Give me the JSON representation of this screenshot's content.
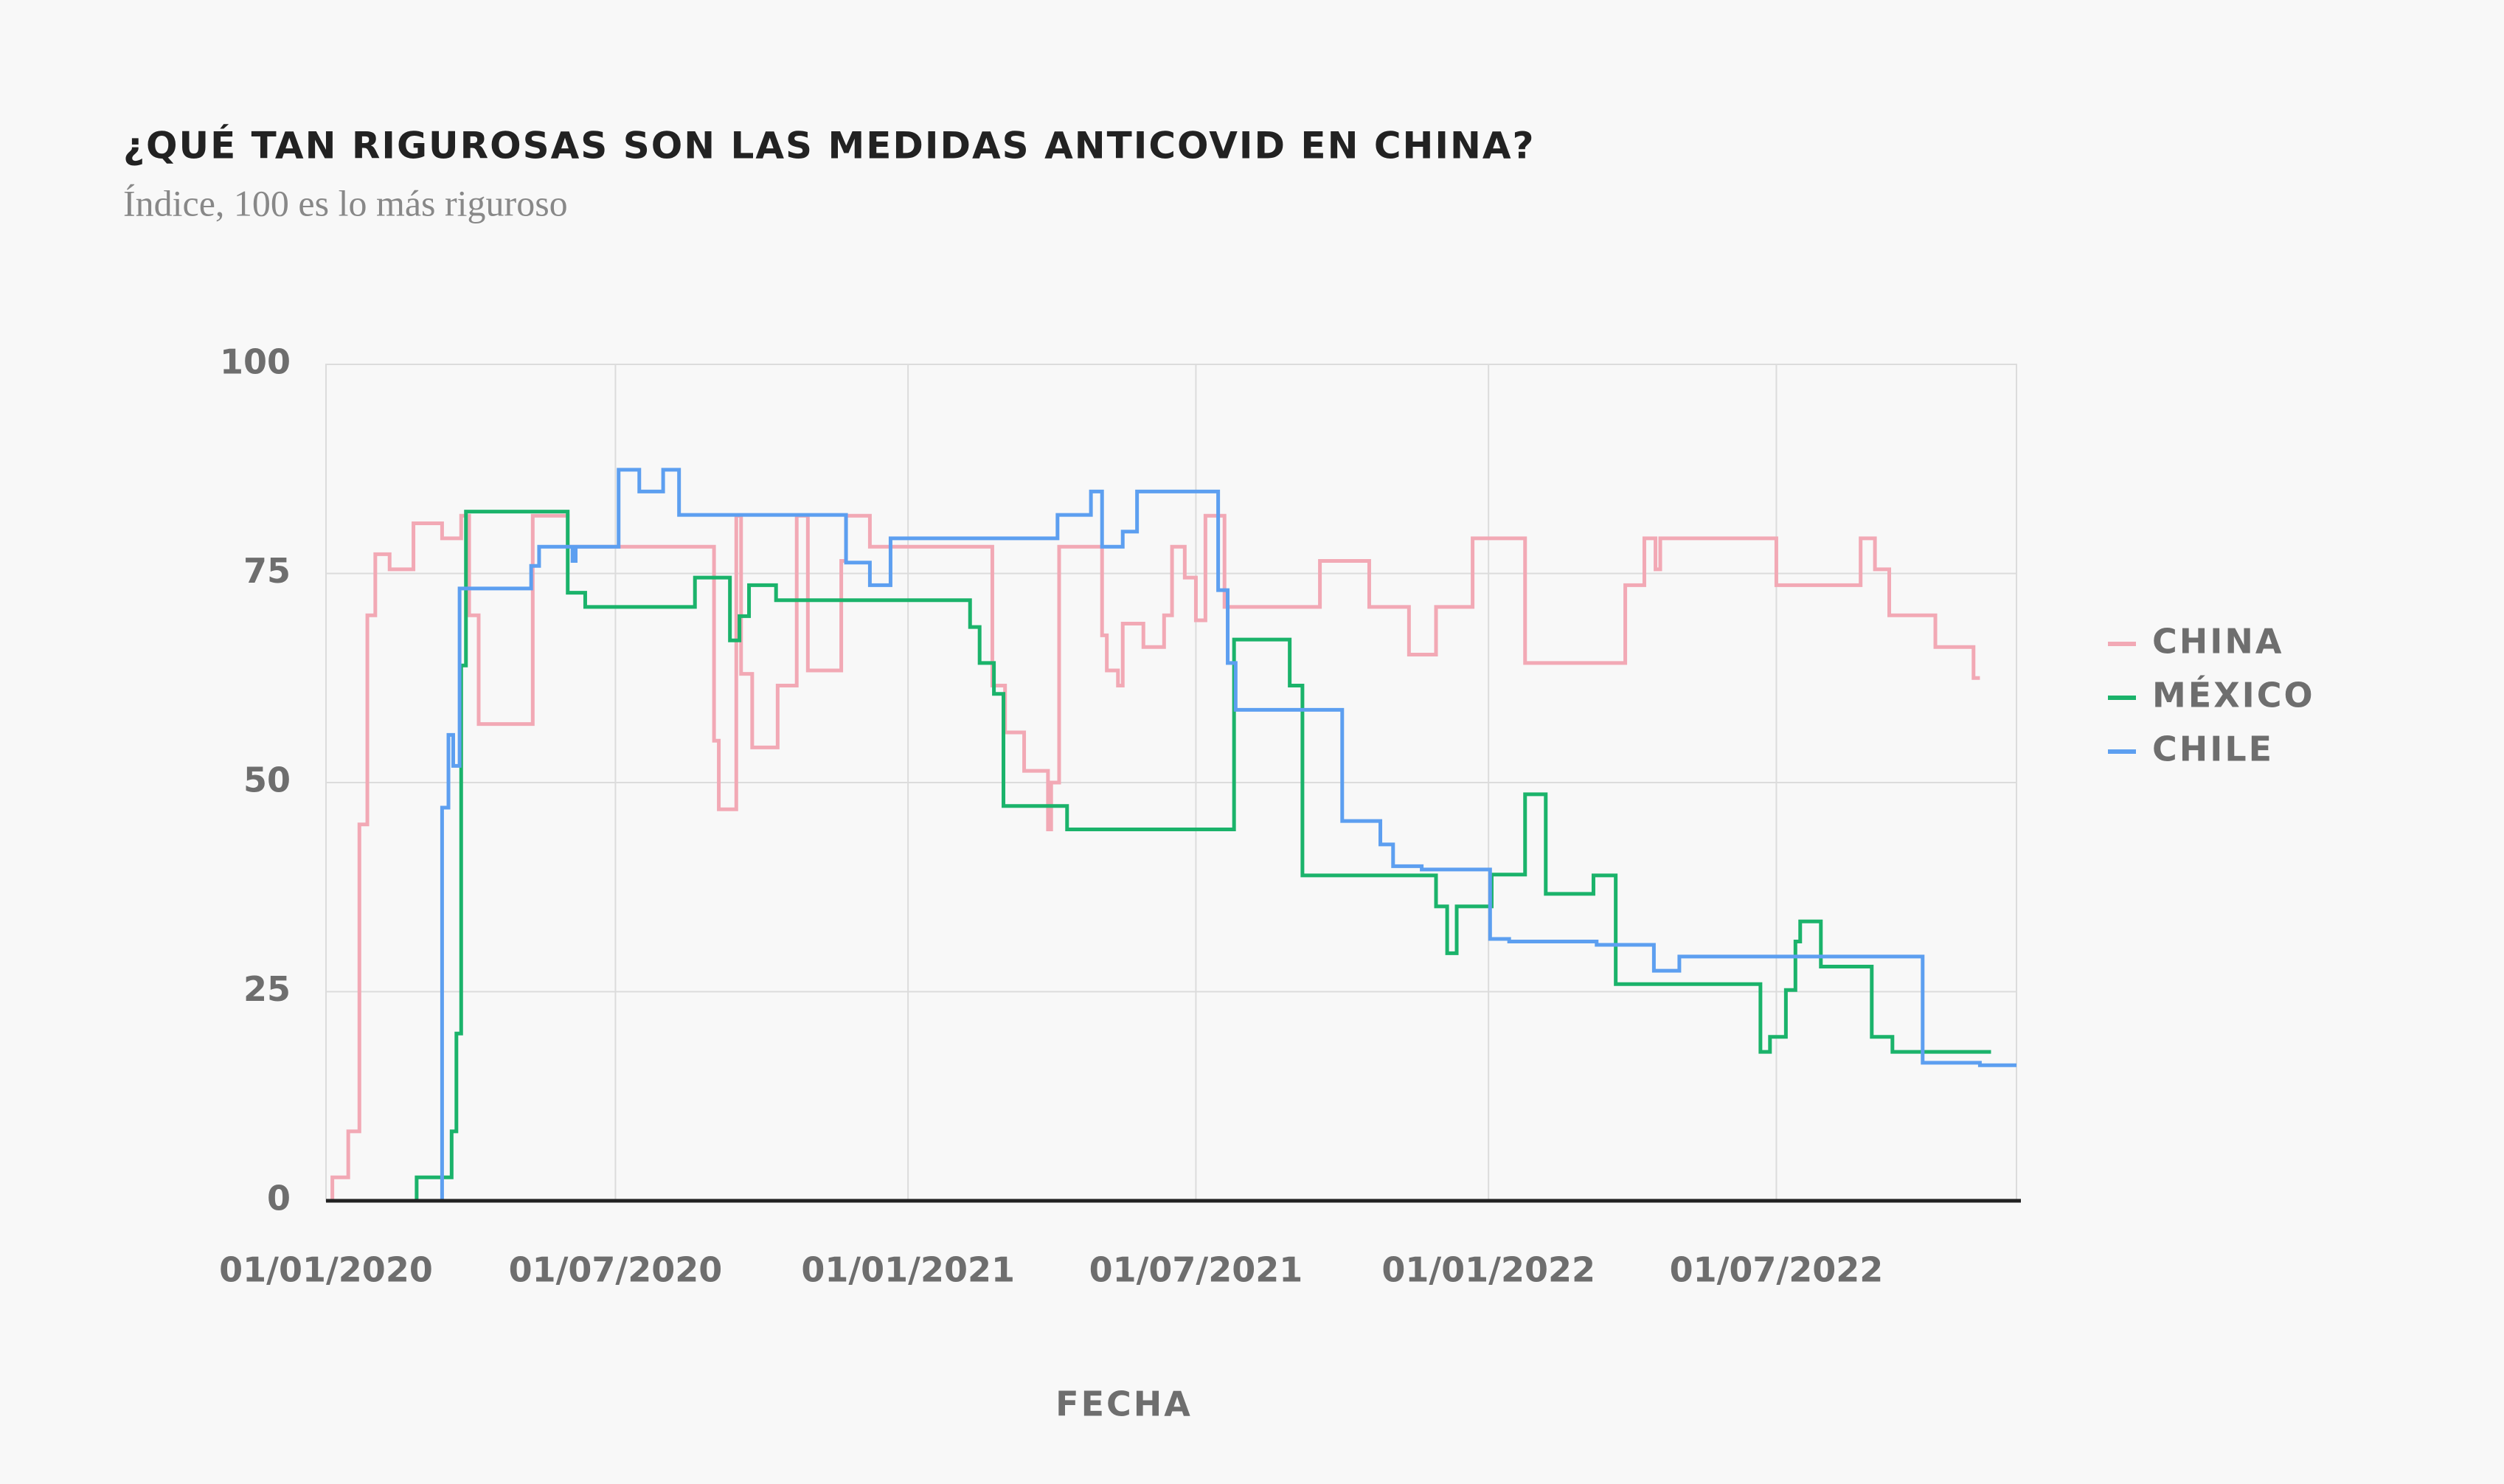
{
  "chart_data": {
    "type": "step-line",
    "title": "¿QUÉ TAN RIGUROSAS SON LAS MEDIDAS ANTICOVID EN CHINA?",
    "subtitle": "Índice, 100 es lo más riguroso",
    "x_label": "FECHA",
    "xlim": [
      "2020-01-01",
      "2022-11-29"
    ],
    "xticks": [
      {
        "value": "2020-01-01",
        "label": "01/01/2020"
      },
      {
        "value": "2020-07-01",
        "label": "01/07/2020"
      },
      {
        "value": "2021-01-01",
        "label": "01/01/2021"
      },
      {
        "value": "2021-07-01",
        "label": "01/07/2021"
      },
      {
        "value": "2022-01-01",
        "label": "01/01/2022"
      },
      {
        "value": "2022-07-01",
        "label": "01/07/2022"
      }
    ],
    "ylim": [
      0,
      100
    ],
    "yticks": [
      0,
      25,
      50,
      75,
      100
    ],
    "grid": true,
    "legend": "right",
    "series": [
      {
        "name": "CHINA",
        "color": "#f2a9b5",
        "x": [
          "2020-01-01",
          "2020-01-05",
          "2020-01-15",
          "2020-01-22",
          "2020-01-27",
          "2020-02-01",
          "2020-02-10",
          "2020-02-25",
          "2020-03-14",
          "2020-03-26",
          "2020-03-31",
          "2020-04-06",
          "2020-05-10",
          "2020-06-01",
          "2020-09-01",
          "2020-09-04",
          "2020-09-15",
          "2020-09-18",
          "2020-09-25",
          "2020-10-11",
          "2020-10-23",
          "2020-10-30",
          "2020-11-20",
          "2020-11-23",
          "2020-12-08",
          "2021-02-23",
          "2021-03-03",
          "2021-03-15",
          "2021-03-30",
          "2021-04-01",
          "2021-04-06",
          "2021-05-03",
          "2021-05-06",
          "2021-05-13",
          "2021-05-16",
          "2021-05-29",
          "2021-06-11",
          "2021-06-16",
          "2021-06-24",
          "2021-07-01",
          "2021-07-07",
          "2021-07-19",
          "2021-09-17",
          "2021-10-18",
          "2021-11-12",
          "2021-11-29",
          "2021-12-22",
          "2022-01-24",
          "2022-03-28",
          "2022-04-09",
          "2022-04-16",
          "2022-04-19",
          "2022-07-01",
          "2022-08-23",
          "2022-09-01",
          "2022-09-10",
          "2022-10-09",
          "2022-11-02",
          "2022-11-06"
        ],
        "values": [
          0,
          2.8,
          8.3,
          45,
          70,
          77.3,
          75.5,
          81,
          79.2,
          81.9,
          70,
          57,
          81.9,
          78.2,
          55,
          46.8,
          81.9,
          63,
          54.2,
          61.6,
          81.9,
          63.4,
          76.5,
          81.9,
          78.2,
          61.6,
          56,
          51.4,
          44.4,
          50,
          78.2,
          67.6,
          63.4,
          61.6,
          69,
          66.2,
          70,
          78.2,
          74.5,
          69.4,
          81.9,
          71,
          76.5,
          71,
          65.3,
          71,
          79.2,
          64.3,
          73.6,
          79.2,
          75.5,
          79.2,
          73.6,
          79.2,
          75.5,
          70,
          66.2,
          62.5,
          62.5
        ]
      },
      {
        "name": "MÉXICO",
        "color": "#1bb36b",
        "x": [
          "2020-01-01",
          "2020-02-27",
          "2020-03-20",
          "2020-03-23",
          "2020-03-26",
          "2020-03-29",
          "2020-06-01",
          "2020-06-12",
          "2020-08-20",
          "2020-09-11",
          "2020-09-17",
          "2020-09-23",
          "2020-10-10",
          "2021-02-09",
          "2021-02-15",
          "2021-02-24",
          "2021-03-02",
          "2021-04-11",
          "2021-07-25",
          "2021-08-29",
          "2021-09-06",
          "2021-11-29",
          "2021-12-06",
          "2021-12-12",
          "2022-01-03",
          "2022-01-24",
          "2022-02-06",
          "2022-03-08",
          "2022-03-22",
          "2022-06-21",
          "2022-06-27",
          "2022-07-07",
          "2022-07-13",
          "2022-07-16",
          "2022-07-29",
          "2022-08-30",
          "2022-09-12",
          "2022-11-13"
        ],
        "values": [
          0,
          2.8,
          8.3,
          20,
          64,
          82.4,
          72.7,
          71,
          74.5,
          67,
          69.9,
          73.6,
          71.8,
          68.6,
          64.3,
          60.6,
          47.2,
          44.4,
          67.1,
          61.6,
          38.9,
          35.2,
          29.6,
          35.2,
          39,
          48.6,
          36.7,
          38.9,
          25.9,
          17.8,
          19.6,
          25.2,
          31,
          33.4,
          28,
          19.6,
          17.8,
          17.8
        ]
      },
      {
        "name": "CHILE",
        "color": "#5d9ff0",
        "x": [
          "2020-01-01",
          "2020-03-14",
          "2020-03-18",
          "2020-03-21",
          "2020-03-25",
          "2020-05-09",
          "2020-05-14",
          "2020-06-04",
          "2020-06-06",
          "2020-07-03",
          "2020-07-16",
          "2020-07-31",
          "2020-08-10",
          "2020-11-23",
          "2020-12-08",
          "2020-12-21",
          "2021-04-05",
          "2021-04-26",
          "2021-05-03",
          "2021-05-16",
          "2021-05-25",
          "2021-07-15",
          "2021-07-21",
          "2021-07-26",
          "2021-10-01",
          "2021-10-25",
          "2021-11-02",
          "2021-11-20",
          "2022-01-02",
          "2022-01-14",
          "2022-03-10",
          "2022-04-15",
          "2022-05-01",
          "2022-10-01",
          "2022-11-06",
          "2022-11-29"
        ],
        "values": [
          0,
          47,
          55.7,
          52,
          73.2,
          75.9,
          78.2,
          76.5,
          78.2,
          87.4,
          84.8,
          87.4,
          82,
          76.3,
          73.6,
          79.2,
          82,
          84.8,
          78.2,
          80,
          84.8,
          73,
          64.3,
          58.7,
          45.4,
          42.6,
          40,
          39.6,
          31.3,
          31,
          30.6,
          27.5,
          29.2,
          16.5,
          16.2,
          16.2
        ]
      }
    ]
  }
}
